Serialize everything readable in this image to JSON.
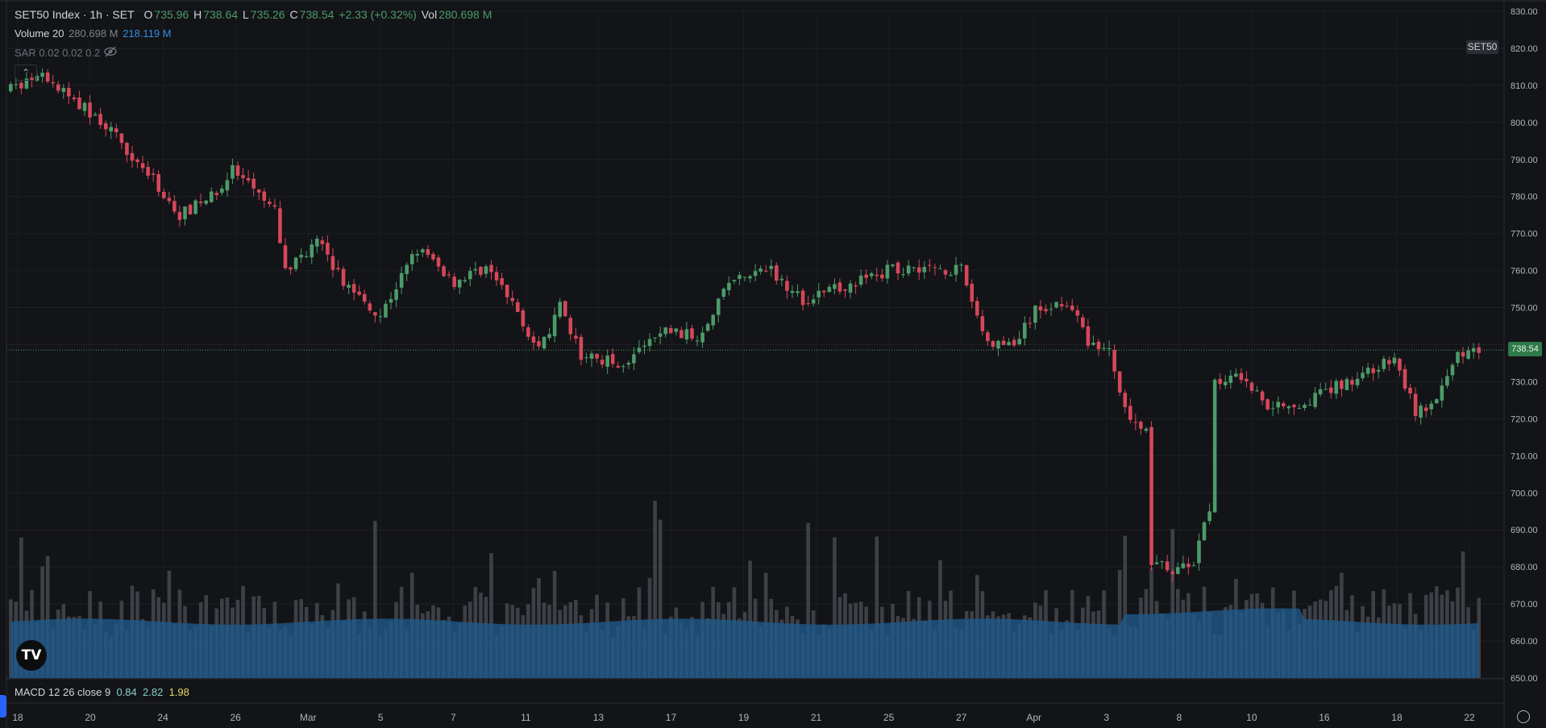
{
  "header": {
    "symbol": "SET50 Index · 1h · SET",
    "o_label": "O",
    "o_value": "735.96",
    "h_label": "H",
    "h_value": "738.64",
    "l_label": "L",
    "l_value": "735.26",
    "c_label": "C",
    "c_value": "738.54",
    "change": "+2.33 (+0.32%)",
    "vol_label": "Vol",
    "vol_value": "280.698 M"
  },
  "volume_indicator": {
    "label": "Volume 20",
    "value": "280.698 M",
    "ma_value": "218.119 M"
  },
  "sar_indicator": {
    "label": "SAR 0.02 0.02 0.2"
  },
  "symbol_tag": "SET50",
  "last_price_tag": "738.54",
  "macd_indicator": {
    "label": "MACD 12 26 close 9",
    "v1": "0.84",
    "v2": "2.82",
    "v3": "1.98"
  },
  "logo_text": "TV",
  "colors": {
    "up": "#4c9b6a",
    "down": "#d5475a",
    "volume_ma": "#1f5a8c",
    "volume_bar": "#3e4047",
    "background": "#131417"
  },
  "chart_data": {
    "type": "candlestick",
    "timeframe": "1h",
    "ylim": [
      650,
      830
    ],
    "y_ticks": [
      "830.00",
      "820.00",
      "810.00",
      "800.00",
      "790.00",
      "780.00",
      "770.00",
      "760.00",
      "750.00",
      "740.00",
      "730.00",
      "720.00",
      "710.00",
      "700.00",
      "690.00",
      "680.00",
      "670.00",
      "660.00",
      "650.00"
    ],
    "x_ticks": [
      "18",
      "20",
      "24",
      "26",
      "Mar",
      "5",
      "7",
      "11",
      "13",
      "17",
      "19",
      "21",
      "25",
      "27",
      "Apr",
      "3",
      "8",
      "10",
      "16",
      "18",
      "22"
    ],
    "last_price": 738.54,
    "price_path": [
      {
        "bar": 0,
        "price": 809
      },
      {
        "bar": 6,
        "price": 812
      },
      {
        "bar": 12,
        "price": 806
      },
      {
        "bar": 18,
        "price": 799
      },
      {
        "bar": 25,
        "price": 788
      },
      {
        "bar": 32,
        "price": 775
      },
      {
        "bar": 38,
        "price": 780
      },
      {
        "bar": 42,
        "price": 787
      },
      {
        "bar": 50,
        "price": 776
      },
      {
        "bar": 52,
        "price": 760
      },
      {
        "bar": 58,
        "price": 768
      },
      {
        "bar": 63,
        "price": 757
      },
      {
        "bar": 70,
        "price": 748
      },
      {
        "bar": 77,
        "price": 766
      },
      {
        "bar": 84,
        "price": 757
      },
      {
        "bar": 90,
        "price": 761
      },
      {
        "bar": 96,
        "price": 749
      },
      {
        "bar": 100,
        "price": 738
      },
      {
        "bar": 104,
        "price": 750
      },
      {
        "bar": 108,
        "price": 737
      },
      {
        "bar": 116,
        "price": 735
      },
      {
        "bar": 124,
        "price": 744
      },
      {
        "bar": 130,
        "price": 742
      },
      {
        "bar": 136,
        "price": 757
      },
      {
        "bar": 144,
        "price": 760
      },
      {
        "bar": 150,
        "price": 752
      },
      {
        "bar": 158,
        "price": 756
      },
      {
        "bar": 166,
        "price": 760
      },
      {
        "bar": 172,
        "price": 761
      },
      {
        "bar": 180,
        "price": 760
      },
      {
        "bar": 185,
        "price": 740
      },
      {
        "bar": 190,
        "price": 740
      },
      {
        "bar": 194,
        "price": 749
      },
      {
        "bar": 200,
        "price": 752
      },
      {
        "bar": 204,
        "price": 741
      },
      {
        "bar": 208,
        "price": 738
      },
      {
        "bar": 212,
        "price": 719
      },
      {
        "bar": 215,
        "price": 717
      },
      {
        "bar": 216,
        "price": 682
      },
      {
        "bar": 220,
        "price": 679
      },
      {
        "bar": 224,
        "price": 681
      },
      {
        "bar": 227,
        "price": 696
      },
      {
        "bar": 228,
        "price": 729
      },
      {
        "bar": 232,
        "price": 733
      },
      {
        "bar": 238,
        "price": 724
      },
      {
        "bar": 244,
        "price": 724
      },
      {
        "bar": 250,
        "price": 728
      },
      {
        "bar": 256,
        "price": 732
      },
      {
        "bar": 262,
        "price": 736
      },
      {
        "bar": 266,
        "price": 722
      },
      {
        "bar": 270,
        "price": 724
      },
      {
        "bar": 274,
        "price": 738
      },
      {
        "bar": 278,
        "price": 738.54
      }
    ],
    "bar_count": 279,
    "volume_ma_level": 0.38
  }
}
